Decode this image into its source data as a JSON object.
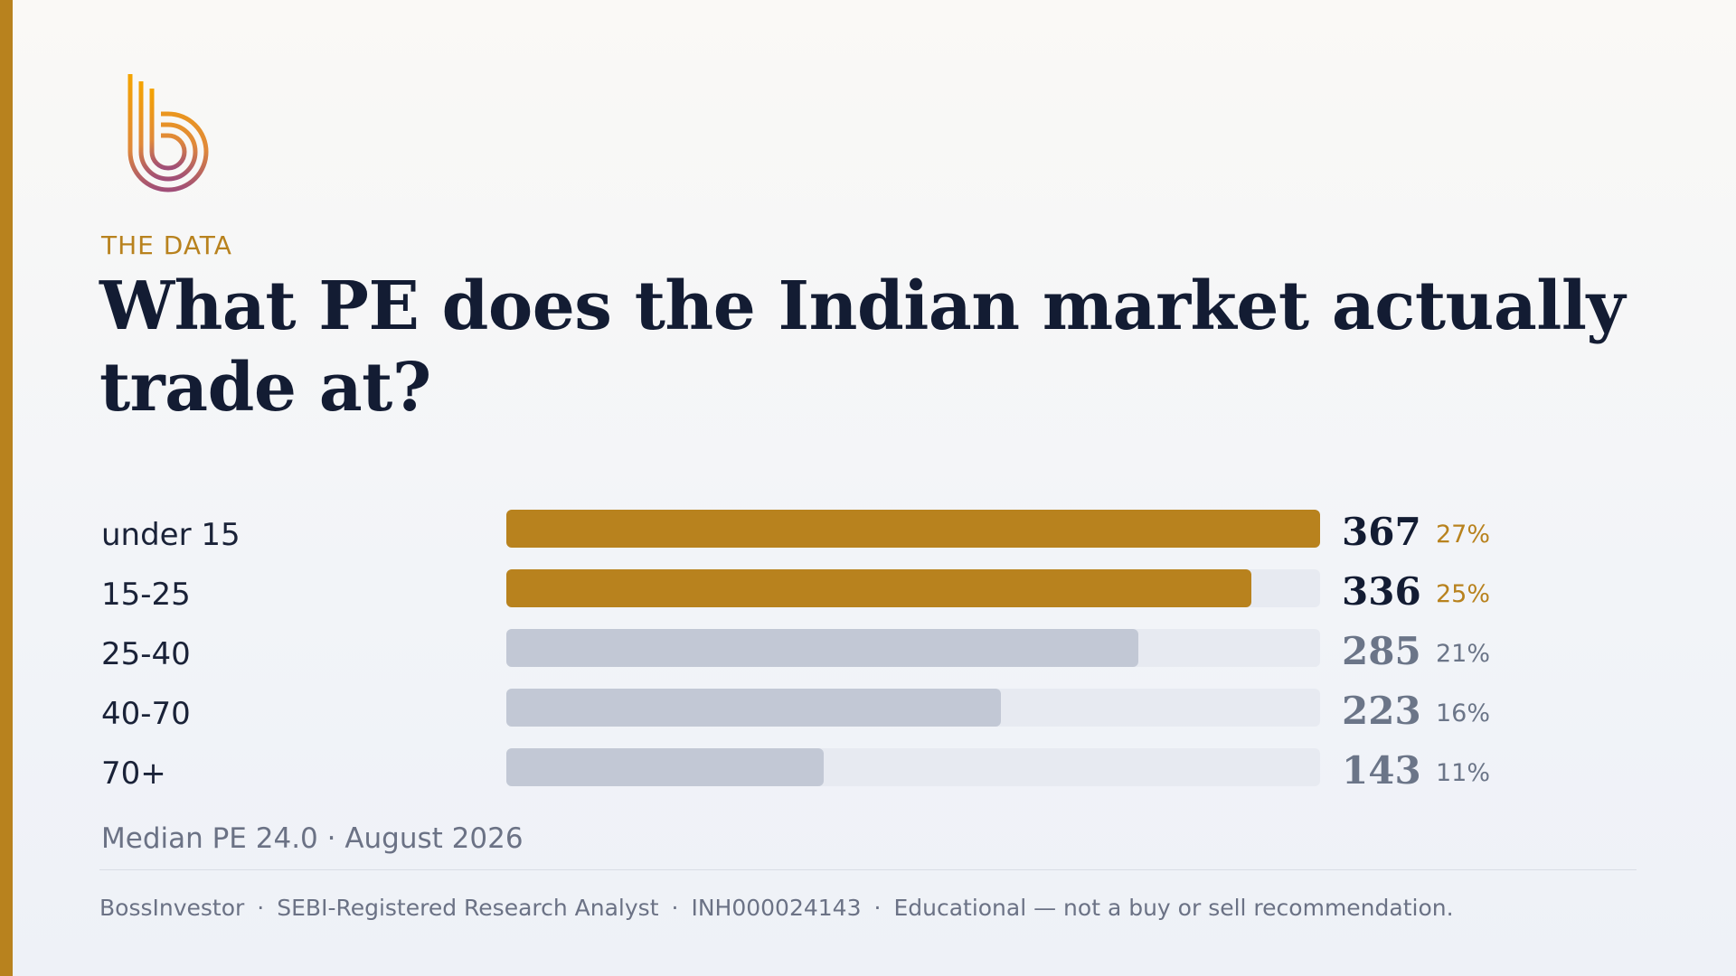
{
  "brand": {
    "accent": "#b8821e",
    "logo_icon": "b-logo-icon"
  },
  "eyebrow": "THE DATA",
  "title": "What PE does the Indian market actually trade at?",
  "colors": {
    "highlight": "#b8821e",
    "muted": "#c2c8d5",
    "track": "#e7eaf1",
    "dark_text": "#131c33",
    "muted_text": "#6b7588"
  },
  "chart_data": {
    "type": "bar",
    "orientation": "horizontal",
    "categories": [
      "under 15",
      "15-25",
      "25-40",
      "40-70",
      "70+"
    ],
    "values": [
      367,
      336,
      285,
      223,
      143
    ],
    "percent_labels": [
      "27%",
      "25%",
      "21%",
      "16%",
      "11%"
    ],
    "value_labels": [
      "367",
      "336",
      "285",
      "223",
      "143"
    ],
    "highlighted": [
      true,
      true,
      false,
      false,
      false
    ],
    "xlim": [
      0,
      367
    ]
  },
  "footnote": "Median PE 24.0 · August 2026",
  "disclaimer": {
    "brand": "BossInvestor",
    "separator": "·",
    "role": "SEBI-Registered Research Analyst",
    "reg_no": "INH000024143",
    "note": "Educational — not a buy or sell recommendation."
  }
}
